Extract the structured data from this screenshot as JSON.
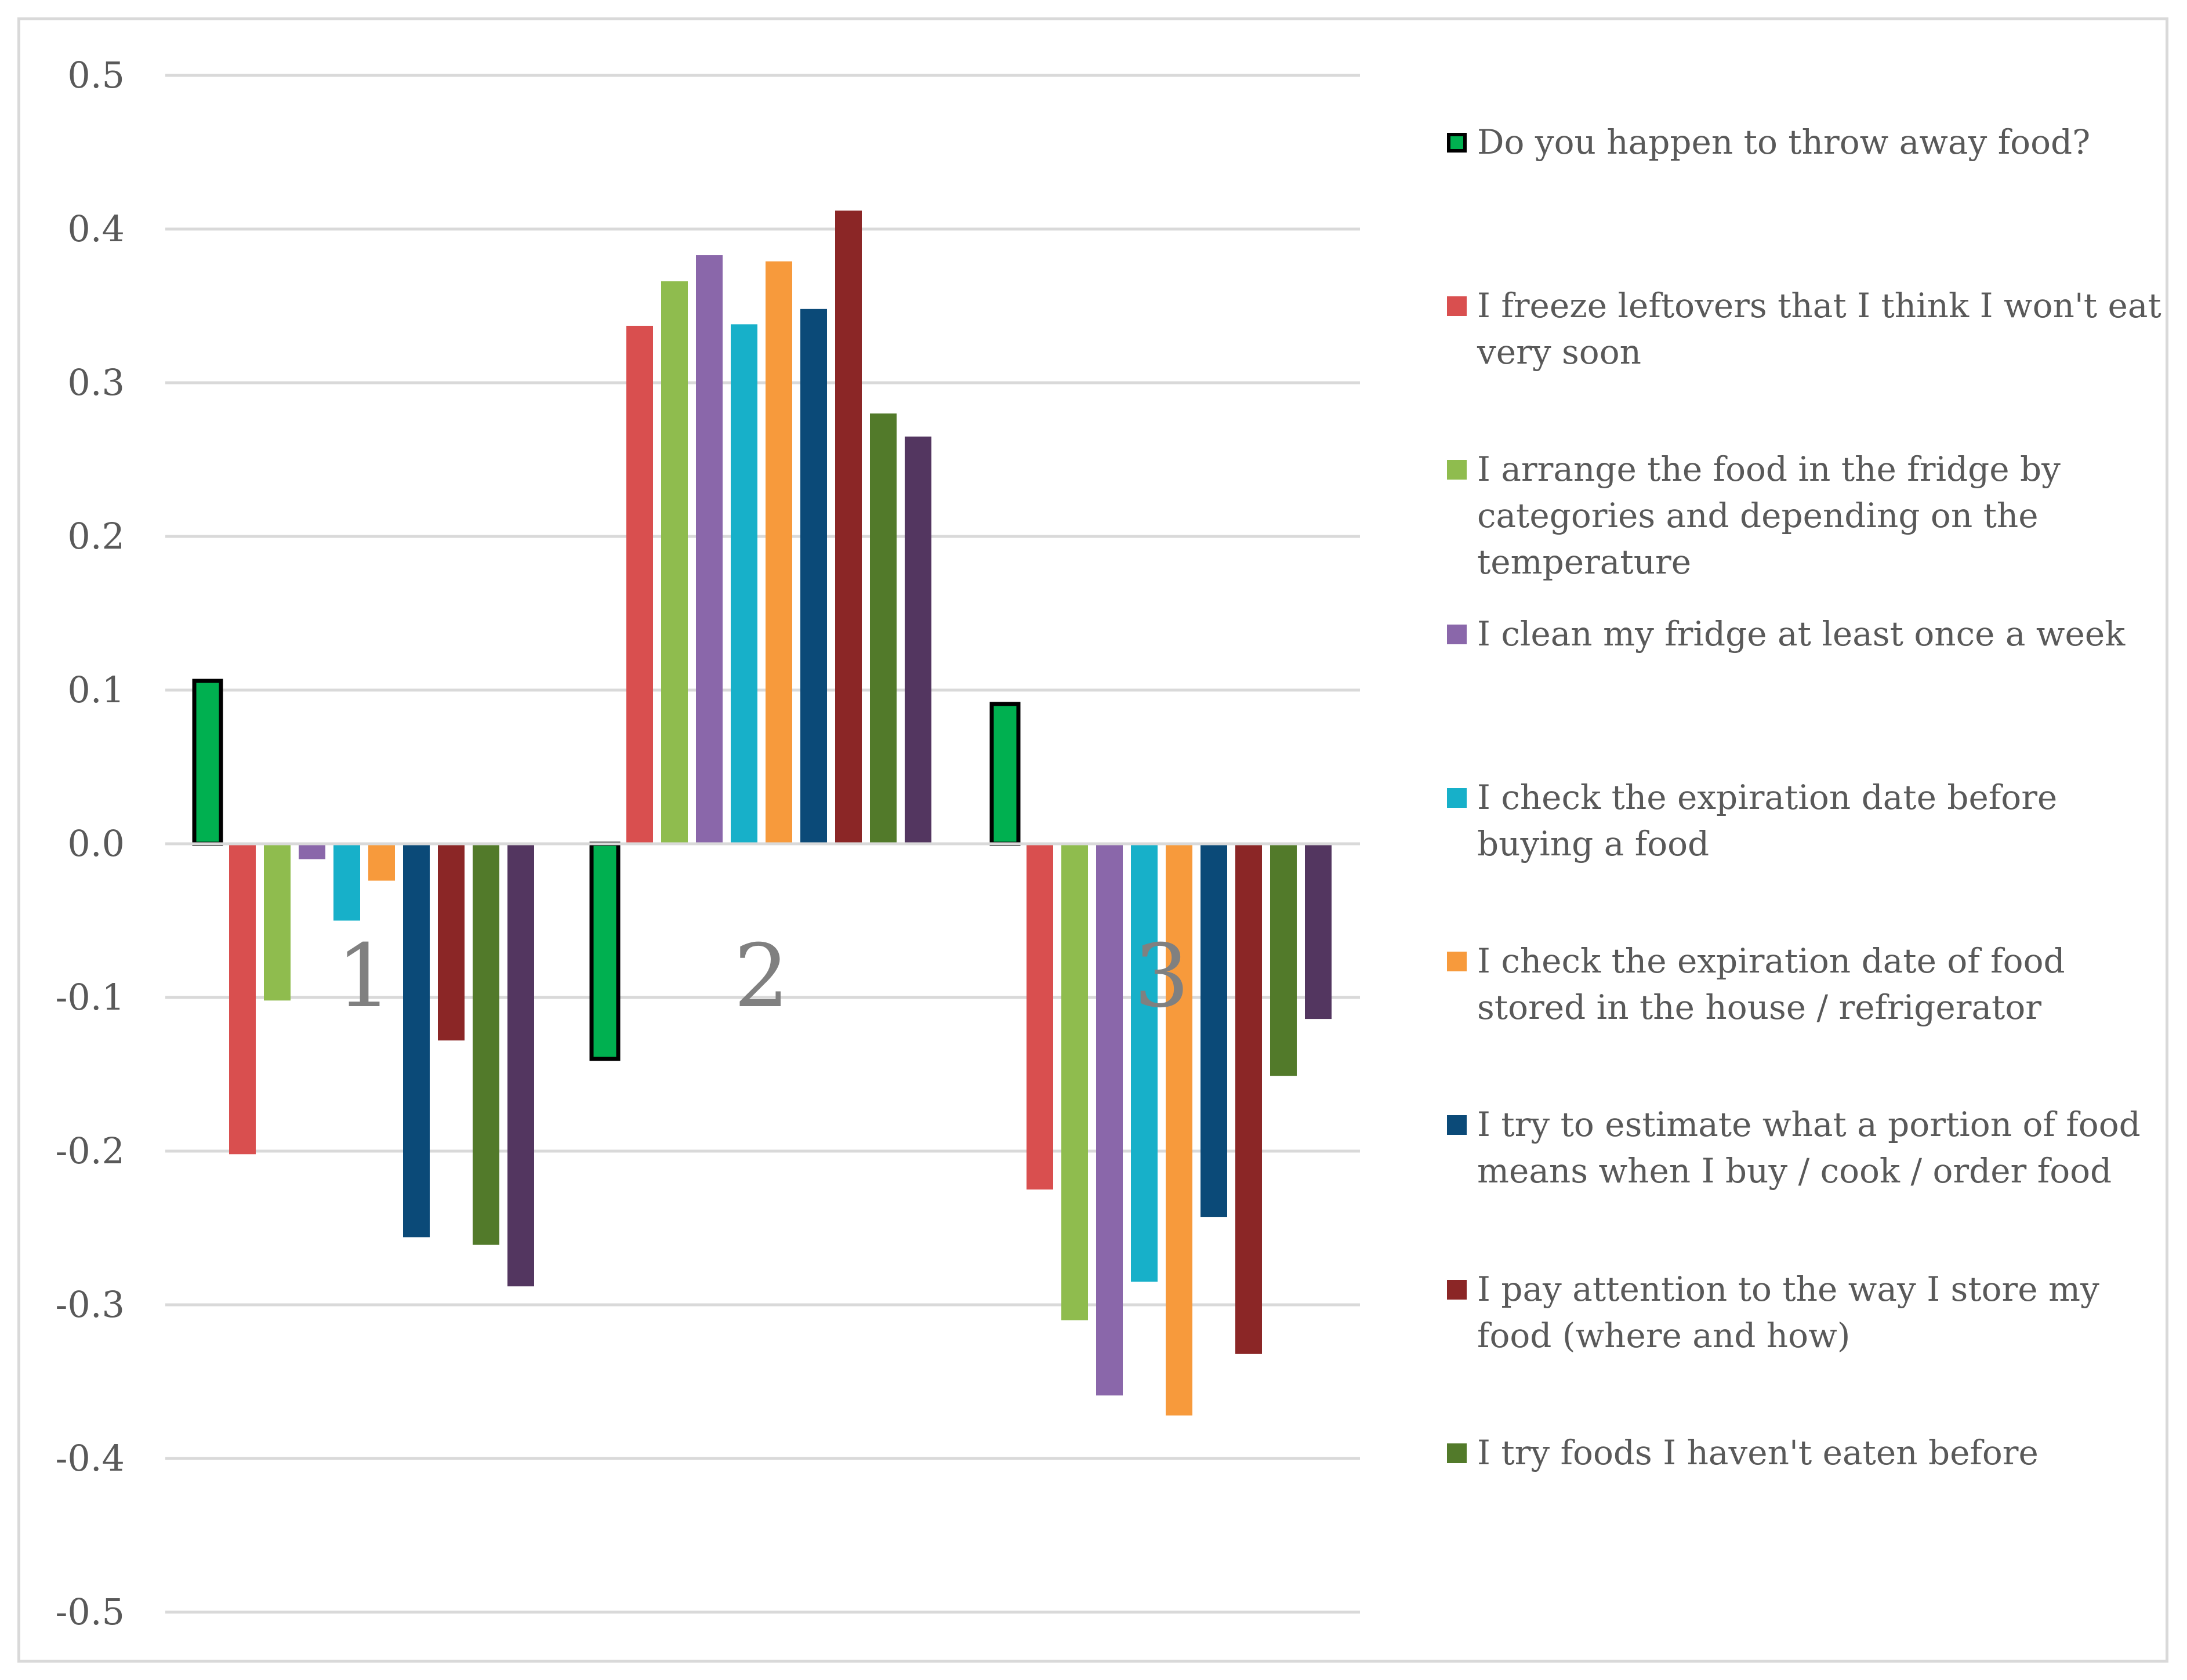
{
  "chart_data": {
    "type": "bar",
    "title": "",
    "xlabel": "",
    "ylabel": "",
    "ylim": [
      -0.5,
      0.5
    ],
    "yticks": [
      "0.5",
      "0.4",
      "0.3",
      "0.2",
      "0.1",
      "0.0",
      "-0.1",
      "-0.2",
      "-0.3",
      "-0.4",
      "-0.5"
    ],
    "ytick_values": [
      0.5,
      0.4,
      0.3,
      0.2,
      0.1,
      0.0,
      -0.1,
      -0.2,
      -0.3,
      -0.4,
      -0.5
    ],
    "grid": true,
    "legend_position": "right",
    "categories": [
      "1",
      "2",
      "3"
    ],
    "series": [
      {
        "name": "Do you happen to throw away food?",
        "color": "#00b050",
        "outline": "#000000",
        "values": [
          0.106,
          -0.14,
          0.091
        ]
      },
      {
        "name": "I freeze leftovers that I think I won't eat very soon",
        "color": "#d94f4f",
        "values": [
          -0.202,
          0.337,
          -0.225
        ]
      },
      {
        "name": "I arrange the food in the fridge by categories and depending on the temperature",
        "color": "#8fbc4e",
        "values": [
          -0.102,
          0.366,
          -0.31
        ]
      },
      {
        "name": "I clean my fridge at least once a week",
        "color": "#8a67aa",
        "values": [
          -0.01,
          0.383,
          -0.359
        ]
      },
      {
        "name": "I check the expiration date before buying a food",
        "color": "#17b0c9",
        "values": [
          -0.05,
          0.338,
          -0.285
        ]
      },
      {
        "name": "I check the expiration date of food stored in the house / refrigerator",
        "color": "#f79a3c",
        "values": [
          -0.024,
          0.379,
          -0.372
        ]
      },
      {
        "name": "I try to estimate what a portion of food means when I buy / cook / order food",
        "color": "#0b4a78",
        "values": [
          -0.256,
          0.348,
          -0.243
        ]
      },
      {
        "name": "I pay attention to the way I store my food (where and how)",
        "color": "#8b2626",
        "values": [
          -0.128,
          0.412,
          -0.332
        ]
      },
      {
        "name": "I try foods I haven't eaten before",
        "color": "#527a2a",
        "values": [
          -0.261,
          0.28,
          -0.151
        ]
      },
      {
        "name": "",
        "color": "#533660",
        "values": [
          -0.288,
          0.265,
          -0.114
        ]
      }
    ]
  }
}
